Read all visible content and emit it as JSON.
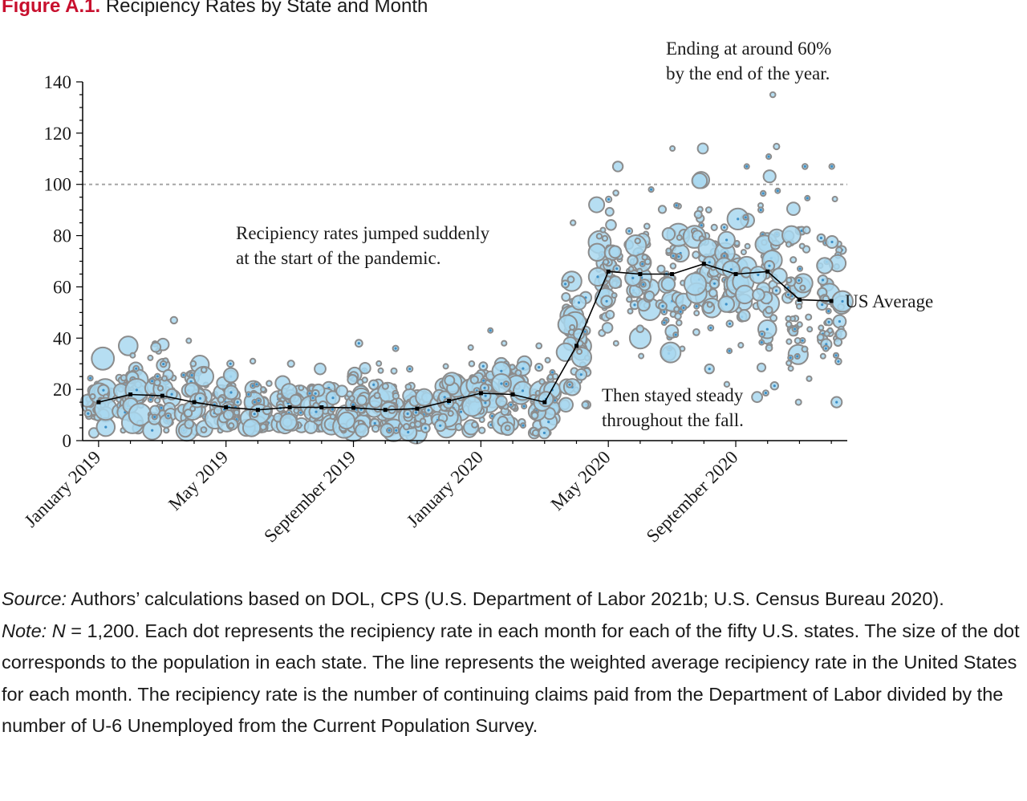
{
  "figure": {
    "label": "Figure A.1.",
    "title": "Recipiency Rates by State and Month"
  },
  "chart_data": {
    "type": "scatter",
    "title": "Recipiency Rates by State and Month",
    "xlabel": "",
    "ylabel": "",
    "ylim": [
      0,
      140
    ],
    "yticks": [
      0,
      20,
      40,
      60,
      80,
      100,
      120,
      140
    ],
    "reference_line": 100,
    "x_months": [
      "2019-01",
      "2019-02",
      "2019-03",
      "2019-04",
      "2019-05",
      "2019-06",
      "2019-07",
      "2019-08",
      "2019-09",
      "2019-10",
      "2019-11",
      "2019-12",
      "2020-01",
      "2020-02",
      "2020-03",
      "2020-04",
      "2020-05",
      "2020-06",
      "2020-07",
      "2020-08",
      "2020-09",
      "2020-10",
      "2020-11",
      "2020-12"
    ],
    "x_tick_labels": [
      {
        "month_index": 0,
        "label": "January 2019"
      },
      {
        "month_index": 4,
        "label": "May 2019"
      },
      {
        "month_index": 8,
        "label": "September 2019"
      },
      {
        "month_index": 12,
        "label": "January 2020"
      },
      {
        "month_index": 16,
        "label": "May 2020"
      },
      {
        "month_index": 20,
        "label": "September 2020"
      }
    ],
    "us_average": {
      "name": "US Average",
      "values": [
        15,
        18,
        17.5,
        15,
        13,
        12,
        13,
        13,
        12.8,
        12,
        12.5,
        15.5,
        18.5,
        18,
        15,
        37,
        66,
        65,
        65,
        69,
        65,
        66,
        55,
        54.5
      ]
    },
    "states_per_month": 50,
    "state_rate_ranges": [
      [
        3,
        32
      ],
      [
        4,
        37
      ],
      [
        4,
        47
      ],
      [
        4,
        39
      ],
      [
        4,
        30
      ],
      [
        5,
        31
      ],
      [
        6,
        30
      ],
      [
        5,
        28
      ],
      [
        4,
        38
      ],
      [
        4,
        36
      ],
      [
        3,
        28
      ],
      [
        5,
        29
      ],
      [
        4,
        43
      ],
      [
        4,
        38
      ],
      [
        3,
        37
      ],
      [
        14,
        85
      ],
      [
        38,
        107
      ],
      [
        33,
        98
      ],
      [
        34,
        114
      ],
      [
        28,
        114
      ],
      [
        22,
        107
      ],
      [
        17,
        135
      ],
      [
        15,
        107
      ],
      [
        15,
        107
      ]
    ],
    "annotations": [
      {
        "text": [
          "Recipiency rates jumped suddenly",
          "at the start of the pandemic."
        ]
      },
      {
        "text": [
          "Then stayed steady",
          "throughout the fall."
        ]
      },
      {
        "text": [
          "Ending at around 60%",
          "by the end of the year."
        ]
      }
    ],
    "colors": {
      "dot_fill": "#a9d8f0",
      "dot_stroke": "#8c8c8c",
      "dot_core": "#3d8fc6",
      "line": "#000000",
      "reference_line": "#a6a6a6",
      "axis": "#000000"
    }
  },
  "notes": {
    "source_label": "Source:",
    "source_text": " Authors’ calculations based on DOL, CPS (U.S. Department of Labor 2021b; U.S. Census Bureau 2020).",
    "note_label": "Note:",
    "note_n": "N",
    "note_text": " = 1,200. Each dot represents the recipiency rate in each month for each of the fifty U.S. states. The size of the dot corresponds to the population in each state. The line represents the weighted average recipiency rate in the United States for each month. The recipiency rate is the number of continuing claims paid from the Department of Labor divided by the number of U-6 Unemployed from the Current Population Survey."
  }
}
